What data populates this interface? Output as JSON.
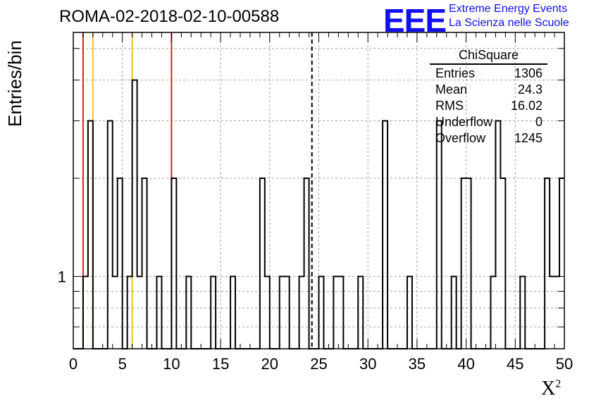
{
  "header": {
    "title": "ROMA-02-2018-02-10-00588",
    "logo_text": "EEE",
    "logo_line1": "Extreme Energy Events",
    "logo_line2": "La Scienza nelle Scuole"
  },
  "stats": {
    "title": "ChiSquare",
    "rows": [
      {
        "label": "Entries",
        "value": "1306"
      },
      {
        "label": "Mean",
        "value": "24.3"
      },
      {
        "label": "RMS",
        "value": "16.02"
      },
      {
        "label": "Underflow",
        "value": "0"
      },
      {
        "label": "Overflow",
        "value": "1245"
      }
    ]
  },
  "chart_data": {
    "type": "histogram",
    "ylabel": "Entries/bin",
    "xlabel": "X",
    "xlabel_superscript": "2",
    "xlim": [
      0,
      50
    ],
    "ylim": [
      0.6,
      5.6
    ],
    "yscale": "log",
    "grid": true,
    "bin_width": 0.5,
    "xticks": [
      0,
      5,
      10,
      15,
      20,
      25,
      30,
      35,
      40,
      45,
      50
    ],
    "ytick_labels": [
      {
        "value": 1,
        "label": "1"
      }
    ],
    "bins": [
      {
        "x": 1.0,
        "count": 1
      },
      {
        "x": 1.5,
        "count": 3
      },
      {
        "x": 3.5,
        "count": 3
      },
      {
        "x": 4.0,
        "count": 1
      },
      {
        "x": 4.5,
        "count": 2
      },
      {
        "x": 5.5,
        "count": 1
      },
      {
        "x": 6.0,
        "count": 4
      },
      {
        "x": 6.5,
        "count": 1
      },
      {
        "x": 7.0,
        "count": 2
      },
      {
        "x": 8.5,
        "count": 1
      },
      {
        "x": 10.0,
        "count": 2
      },
      {
        "x": 11.5,
        "count": 1
      },
      {
        "x": 14.0,
        "count": 1
      },
      {
        "x": 16.0,
        "count": 1
      },
      {
        "x": 19.0,
        "count": 2
      },
      {
        "x": 19.5,
        "count": 1
      },
      {
        "x": 21.0,
        "count": 1
      },
      {
        "x": 21.5,
        "count": 1
      },
      {
        "x": 23.0,
        "count": 1
      },
      {
        "x": 23.5,
        "count": 2
      },
      {
        "x": 25.0,
        "count": 1
      },
      {
        "x": 26.5,
        "count": 1
      },
      {
        "x": 27.0,
        "count": 1
      },
      {
        "x": 29.0,
        "count": 1
      },
      {
        "x": 31.5,
        "count": 3
      },
      {
        "x": 34.0,
        "count": 1
      },
      {
        "x": 37.0,
        "count": 3
      },
      {
        "x": 38.5,
        "count": 1
      },
      {
        "x": 39.5,
        "count": 2
      },
      {
        "x": 40.0,
        "count": 2
      },
      {
        "x": 42.5,
        "count": 1
      },
      {
        "x": 43.0,
        "count": 3
      },
      {
        "x": 43.5,
        "count": 2
      },
      {
        "x": 45.5,
        "count": 1
      },
      {
        "x": 48.0,
        "count": 2
      },
      {
        "x": 48.5,
        "count": 1
      },
      {
        "x": 49.0,
        "count": 1
      },
      {
        "x": 49.5,
        "count": 2
      }
    ],
    "vlines": [
      {
        "x": 1.0,
        "color": "#e02020",
        "style": "solid"
      },
      {
        "x": 2.0,
        "color": "#f0c020",
        "style": "solid"
      },
      {
        "x": 6.0,
        "color": "#f0c020",
        "style": "solid"
      },
      {
        "x": 10.0,
        "color": "#e02020",
        "style": "solid"
      },
      {
        "x": 24.3,
        "color": "#000000",
        "style": "dashed"
      }
    ]
  }
}
